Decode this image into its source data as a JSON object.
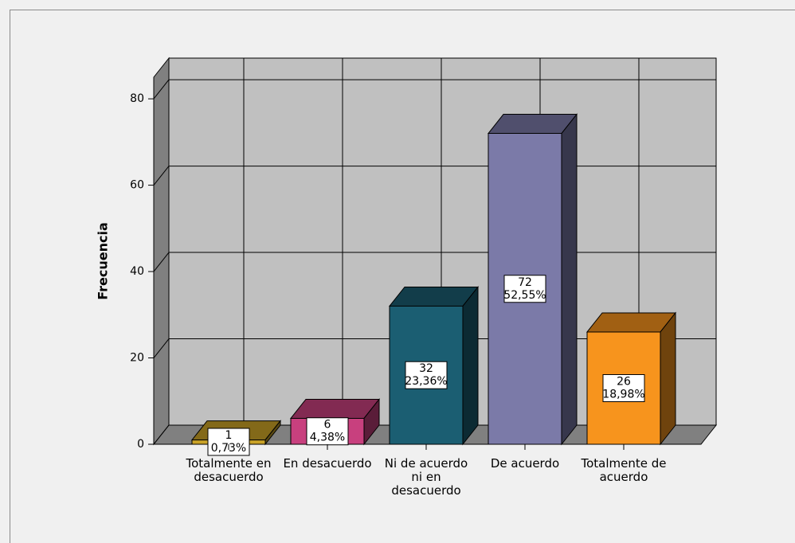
{
  "chart_data": {
    "type": "bar3d",
    "y_label": "Frecuencia",
    "categories": [
      "Totalmente en desacuerdo",
      "En desacuerdo",
      "Ni de acuerdo ni en desacuerdo",
      "De acuerdo",
      "Totalmente de acuerdo"
    ],
    "values": [
      1,
      6,
      32,
      72,
      26
    ],
    "percent_labels": [
      "0,73%",
      "4,38%",
      "23,36%",
      "52,55%",
      "18,98%"
    ],
    "colors": [
      "#c9a227",
      "#c8407e",
      "#1b5e72",
      "#7b7aa8",
      "#f7941d"
    ],
    "ylim": [
      0,
      85
    ],
    "yticks": [
      0,
      20,
      40,
      60,
      80
    ],
    "grid": true
  }
}
